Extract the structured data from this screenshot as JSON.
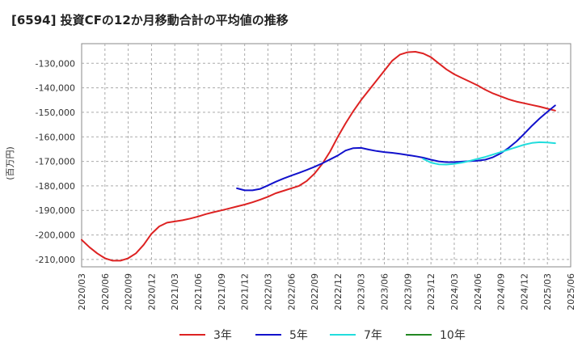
{
  "chart_data": {
    "type": "line",
    "title": "[6594]  投資CFの12か月移動合計の平均値の推移",
    "ylabel": "(百万円)",
    "xlabel": "",
    "ylim": [
      -213000,
      -122000
    ],
    "yticks": [
      -130000,
      -140000,
      -150000,
      -160000,
      -170000,
      -180000,
      -190000,
      -200000,
      -210000
    ],
    "ytick_labels": [
      "-130,000",
      "-140,000",
      "-150,000",
      "-160,000",
      "-170,000",
      "-180,000",
      "-190,000",
      "-200,000",
      "-210,000"
    ],
    "xticks": [
      "2020/03",
      "2020/06",
      "2020/09",
      "2020/12",
      "2021/03",
      "2021/06",
      "2021/09",
      "2021/12",
      "2022/03",
      "2022/06",
      "2022/09",
      "2022/12",
      "2023/03",
      "2023/06",
      "2023/09",
      "2023/12",
      "2024/03",
      "2024/06",
      "2024/09",
      "2024/12",
      "2025/03",
      "2025/06"
    ],
    "grid": true,
    "legend_position": "bottom",
    "series": [
      {
        "name": "3年",
        "color": "#dd2222",
        "points": [
          [
            "2020/03",
            -202000
          ],
          [
            "2020/04",
            -205000
          ],
          [
            "2020/05",
            -207500
          ],
          [
            "2020/06",
            -209500
          ],
          [
            "2020/07",
            -210500
          ],
          [
            "2020/08",
            -210500
          ],
          [
            "2020/09",
            -209500
          ],
          [
            "2020/10",
            -207500
          ],
          [
            "2020/11",
            -204000
          ],
          [
            "2020/12",
            -199500
          ],
          [
            "2021/01",
            -196500
          ],
          [
            "2021/02",
            -195000
          ],
          [
            "2021/03",
            -194500
          ],
          [
            "2021/04",
            -194000
          ],
          [
            "2021/05",
            -193300
          ],
          [
            "2021/06",
            -192500
          ],
          [
            "2021/07",
            -191500
          ],
          [
            "2021/08",
            -190700
          ],
          [
            "2021/09",
            -190000
          ],
          [
            "2021/10",
            -189200
          ],
          [
            "2021/11",
            -188400
          ],
          [
            "2021/12",
            -187600
          ],
          [
            "2022/01",
            -186700
          ],
          [
            "2022/02",
            -185600
          ],
          [
            "2022/03",
            -184400
          ],
          [
            "2022/04",
            -183000
          ],
          [
            "2022/05",
            -182000
          ],
          [
            "2022/06",
            -181000
          ],
          [
            "2022/07",
            -180000
          ],
          [
            "2022/08",
            -178000
          ],
          [
            "2022/09",
            -175000
          ],
          [
            "2022/10",
            -171000
          ],
          [
            "2022/11",
            -166000
          ],
          [
            "2022/12",
            -160000
          ],
          [
            "2023/01",
            -154500
          ],
          [
            "2023/02",
            -149500
          ],
          [
            "2023/03",
            -145000
          ],
          [
            "2023/04",
            -141000
          ],
          [
            "2023/05",
            -137000
          ],
          [
            "2023/06",
            -133000
          ],
          [
            "2023/07",
            -129000
          ],
          [
            "2023/08",
            -126500
          ],
          [
            "2023/09",
            -125500
          ],
          [
            "2023/10",
            -125300
          ],
          [
            "2023/11",
            -126000
          ],
          [
            "2023/12",
            -127500
          ],
          [
            "2024/01",
            -130000
          ],
          [
            "2024/02",
            -132500
          ],
          [
            "2024/03",
            -134500
          ],
          [
            "2024/04",
            -136000
          ],
          [
            "2024/05",
            -137500
          ],
          [
            "2024/06",
            -139000
          ],
          [
            "2024/07",
            -140800
          ],
          [
            "2024/08",
            -142300
          ],
          [
            "2024/09",
            -143500
          ],
          [
            "2024/10",
            -144700
          ],
          [
            "2024/11",
            -145600
          ],
          [
            "2024/12",
            -146300
          ],
          [
            "2025/01",
            -147000
          ],
          [
            "2025/02",
            -147700
          ],
          [
            "2025/03",
            -148500
          ],
          [
            "2025/04",
            -149300
          ]
        ]
      },
      {
        "name": "5年",
        "color": "#1111cc",
        "points": [
          [
            "2021/11",
            -181000
          ],
          [
            "2021/12",
            -181800
          ],
          [
            "2022/01",
            -181800
          ],
          [
            "2022/02",
            -181200
          ],
          [
            "2022/03",
            -179800
          ],
          [
            "2022/04",
            -178300
          ],
          [
            "2022/05",
            -177000
          ],
          [
            "2022/06",
            -175800
          ],
          [
            "2022/07",
            -174700
          ],
          [
            "2022/08",
            -173500
          ],
          [
            "2022/09",
            -172200
          ],
          [
            "2022/10",
            -170800
          ],
          [
            "2022/11",
            -169200
          ],
          [
            "2022/12",
            -167600
          ],
          [
            "2023/01",
            -165600
          ],
          [
            "2023/02",
            -164600
          ],
          [
            "2023/03",
            -164500
          ],
          [
            "2023/04",
            -165200
          ],
          [
            "2023/05",
            -165800
          ],
          [
            "2023/06",
            -166200
          ],
          [
            "2023/07",
            -166500
          ],
          [
            "2023/08",
            -166900
          ],
          [
            "2023/09",
            -167400
          ],
          [
            "2023/10",
            -167900
          ],
          [
            "2023/11",
            -168500
          ],
          [
            "2023/12",
            -169300
          ],
          [
            "2024/01",
            -170000
          ],
          [
            "2024/02",
            -170300
          ],
          [
            "2024/03",
            -170300
          ],
          [
            "2024/04",
            -170100
          ],
          [
            "2024/05",
            -169900
          ],
          [
            "2024/06",
            -169700
          ],
          [
            "2024/07",
            -169300
          ],
          [
            "2024/08",
            -168300
          ],
          [
            "2024/09",
            -166700
          ],
          [
            "2024/10",
            -164500
          ],
          [
            "2024/11",
            -161900
          ],
          [
            "2024/12",
            -158800
          ],
          [
            "2025/01",
            -155500
          ],
          [
            "2025/02",
            -152500
          ],
          [
            "2025/03",
            -149800
          ],
          [
            "2025/04",
            -147200
          ]
        ]
      },
      {
        "name": "7年",
        "color": "#22dddd",
        "points": [
          [
            "2023/11",
            -169000
          ],
          [
            "2023/12",
            -170500
          ],
          [
            "2024/01",
            -171200
          ],
          [
            "2024/02",
            -171300
          ],
          [
            "2024/03",
            -171000
          ],
          [
            "2024/04",
            -170500
          ],
          [
            "2024/05",
            -169800
          ],
          [
            "2024/06",
            -169000
          ],
          [
            "2024/07",
            -168200
          ],
          [
            "2024/08",
            -167200
          ],
          [
            "2024/09",
            -166200
          ],
          [
            "2024/10",
            -165200
          ],
          [
            "2024/11",
            -164200
          ],
          [
            "2024/12",
            -163200
          ],
          [
            "2025/01",
            -162500
          ],
          [
            "2025/02",
            -162200
          ],
          [
            "2025/03",
            -162300
          ],
          [
            "2025/04",
            -162600
          ]
        ]
      },
      {
        "name": "10年",
        "color": "#228822",
        "points": []
      }
    ]
  }
}
